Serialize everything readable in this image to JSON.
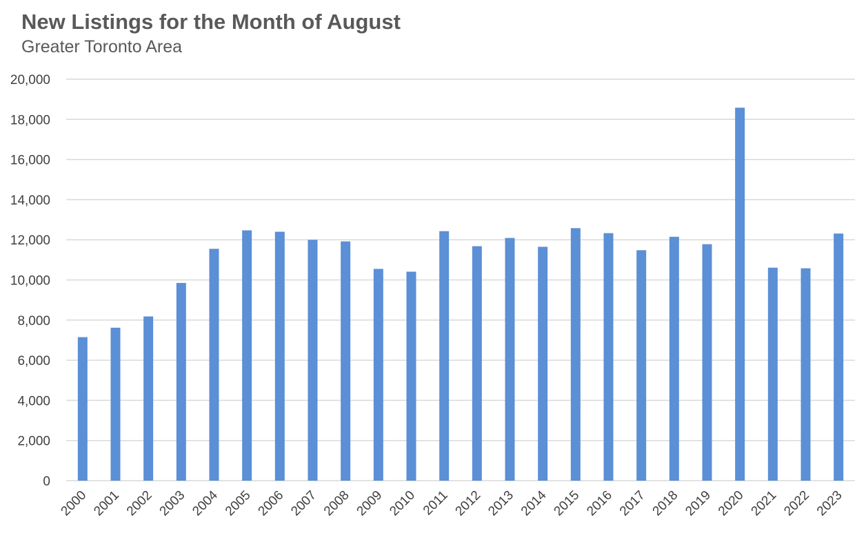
{
  "chart_data": {
    "type": "bar",
    "title": "New Listings for the Month of August",
    "subtitle": "Greater Toronto Area",
    "xlabel": "",
    "ylabel": "",
    "categories": [
      "2000",
      "2001",
      "2002",
      "2003",
      "2004",
      "2005",
      "2006",
      "2007",
      "2008",
      "2009",
      "2010",
      "2011",
      "2012",
      "2013",
      "2014",
      "2015",
      "2016",
      "2017",
      "2018",
      "2019",
      "2020",
      "2021",
      "2022",
      "2023"
    ],
    "values": [
      7150,
      7620,
      8180,
      9850,
      11550,
      12470,
      12400,
      12000,
      11920,
      10550,
      10410,
      12430,
      11680,
      12090,
      11650,
      12580,
      12330,
      11480,
      12150,
      11780,
      18580,
      10610,
      10580,
      12310
    ],
    "ylim": [
      0,
      20000
    ],
    "yticks": [
      0,
      2000,
      4000,
      6000,
      8000,
      10000,
      12000,
      14000,
      16000,
      18000,
      20000
    ],
    "ytick_labels": [
      "0",
      "2,000",
      "4,000",
      "6,000",
      "8,000",
      "10,000",
      "12,000",
      "14,000",
      "16,000",
      "18,000",
      "20,000"
    ],
    "grid": true,
    "legend": "none",
    "bar_color": "#5B8FD6",
    "grid_color": "#D9D9D9"
  }
}
